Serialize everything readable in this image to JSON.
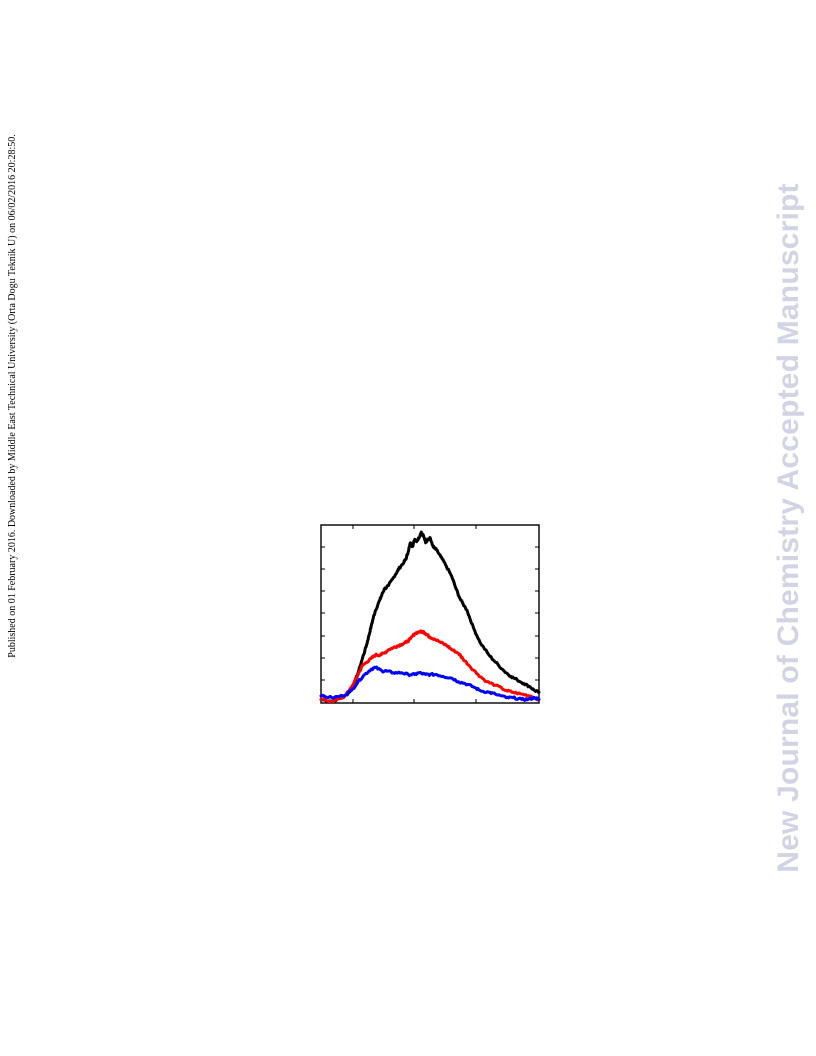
{
  "side_note": {
    "text": "Published on 01 February 2016. Downloaded by Middle East Technical University (Orta Dogu Teknik U) on 06/02/2016 20:28:50."
  },
  "watermark": {
    "text": "New Journal of Chemistry Accepted Manuscript",
    "color": "#d3d3e6"
  },
  "chart_data": {
    "type": "line",
    "title": "",
    "xlabel": "",
    "ylabel": "",
    "xlim": [
      0,
      100
    ],
    "ylim": [
      0,
      100
    ],
    "grid": false,
    "series": [
      {
        "color": "#000000",
        "x": [
          0,
          5,
          10,
          13,
          15,
          17,
          19,
          21,
          22,
          23,
          24,
          25,
          27,
          28,
          29,
          31,
          33,
          35,
          36,
          38,
          39,
          40,
          41,
          42,
          43,
          44,
          45,
          46,
          47,
          48,
          49,
          50,
          51,
          52,
          53,
          55,
          57,
          60,
          62,
          64,
          67,
          70,
          73,
          77,
          80,
          84,
          87,
          90,
          93,
          96,
          98,
          100
        ],
        "y": [
          2,
          1,
          3,
          6,
          10,
          17,
          25,
          33,
          38,
          43,
          48,
          52,
          58,
          61,
          64,
          66,
          70,
          74,
          76,
          79,
          81,
          85,
          90,
          88,
          92,
          91,
          93,
          96,
          94,
          90,
          92,
          93,
          89,
          87,
          86,
          82,
          78,
          71,
          64,
          58,
          52,
          42,
          34,
          27,
          23,
          18,
          15,
          13,
          11,
          9,
          7,
          6
        ]
      },
      {
        "color": "#ff0000",
        "x": [
          0,
          5,
          10,
          13,
          15,
          17,
          19,
          21,
          23,
          25,
          27,
          29,
          31,
          33,
          35,
          37,
          39,
          41,
          43,
          45,
          47,
          48,
          49,
          50,
          52,
          55,
          58,
          60,
          63,
          65,
          68,
          72,
          76,
          80,
          85,
          88,
          92,
          96,
          100
        ],
        "y": [
          2,
          1,
          3,
          7,
          11,
          16,
          21,
          23,
          25,
          27,
          27,
          28,
          30,
          31,
          32,
          33,
          34,
          36,
          39,
          40,
          40,
          39,
          38,
          37,
          36,
          34,
          32,
          30,
          28,
          25,
          21,
          16,
          12,
          10,
          7,
          6,
          5,
          4,
          2
        ]
      },
      {
        "color": "#0000ff",
        "x": [
          0,
          5,
          10,
          14,
          17,
          20,
          23,
          25,
          28,
          30,
          33,
          37,
          40,
          43,
          45,
          48,
          50,
          53,
          56,
          60,
          63,
          66,
          70,
          73,
          77,
          80,
          85,
          88,
          92,
          95,
          98,
          100
        ],
        "y": [
          4,
          3,
          4,
          7,
          12,
          16,
          19,
          20,
          18,
          18,
          17,
          17,
          16,
          16,
          17,
          16,
          16,
          16,
          15,
          14,
          12,
          11,
          9,
          7,
          6,
          5,
          3,
          3,
          2,
          2,
          3,
          2
        ]
      }
    ]
  }
}
